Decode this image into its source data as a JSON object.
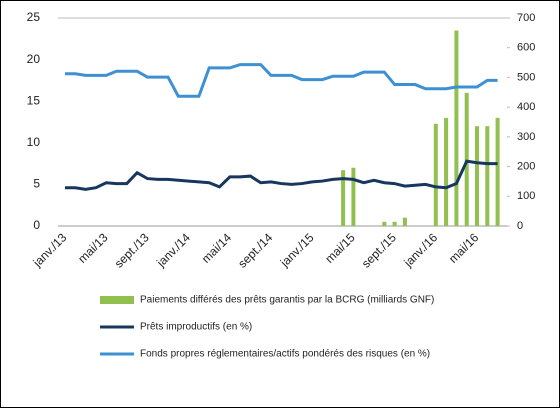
{
  "chart_data": {
    "type": "bar_line",
    "categories": [
      "janv./13",
      null,
      null,
      null,
      "mai/13",
      null,
      null,
      null,
      "sept./13",
      null,
      null,
      null,
      "janv./14",
      null,
      null,
      null,
      "mai/14",
      null,
      null,
      null,
      "sept./14",
      null,
      null,
      null,
      "janv./15",
      null,
      null,
      null,
      "mai/15",
      null,
      null,
      null,
      "sept./15",
      null,
      null,
      null,
      "janv./16",
      null,
      null,
      null,
      "mai/16",
      null,
      null
    ],
    "ylim": [
      0,
      25
    ],
    "yticks": [
      0,
      5,
      10,
      15,
      20,
      25
    ],
    "y2lim": [
      0,
      700
    ],
    "y2ticks": [
      0,
      100,
      200,
      300,
      400,
      500,
      600,
      700
    ],
    "series": [
      {
        "name": "Paiements différés des prêts garantis par la BCRG (milliards GNF)",
        "type": "bar",
        "axis": "y2",
        "color": "#92c050",
        "values": [
          null,
          null,
          null,
          null,
          null,
          null,
          null,
          null,
          null,
          null,
          null,
          null,
          null,
          null,
          null,
          null,
          null,
          null,
          null,
          null,
          null,
          null,
          null,
          null,
          null,
          null,
          null,
          188,
          196,
          null,
          null,
          14,
          14,
          28,
          null,
          null,
          344,
          364,
          658,
          448,
          336,
          336,
          364
        ]
      },
      {
        "name": "Prêts improductifs (en %)",
        "type": "line",
        "color": "#17375e",
        "values": [
          4.6,
          4.6,
          4.4,
          4.6,
          5.2,
          5.1,
          5.1,
          6.4,
          5.7,
          5.6,
          5.6,
          5.5,
          5.4,
          5.3,
          5.2,
          4.7,
          5.9,
          5.9,
          6.0,
          5.2,
          5.3,
          5.1,
          5.0,
          5.1,
          5.3,
          5.4,
          5.6,
          5.7,
          5.6,
          5.2,
          5.5,
          5.2,
          5.1,
          4.8,
          4.9,
          5.0,
          4.7,
          4.6,
          5.1,
          7.8,
          7.6,
          7.5,
          7.5
        ]
      },
      {
        "name": "Fonds propres réglementaires/actifs pondérés des risques (en %)",
        "type": "line",
        "color": "#3d91d3",
        "values": [
          18.3,
          18.3,
          18.1,
          18.1,
          18.1,
          18.6,
          18.6,
          18.6,
          17.9,
          17.9,
          17.9,
          15.6,
          15.6,
          15.6,
          19.0,
          19.0,
          19.0,
          19.4,
          19.4,
          19.4,
          18.1,
          18.1,
          18.1,
          17.6,
          17.6,
          17.6,
          18.0,
          18.0,
          18.0,
          18.5,
          18.5,
          18.5,
          17.0,
          17.0,
          17.0,
          16.5,
          16.5,
          16.5,
          16.7,
          16.7,
          16.7,
          17.5,
          17.5
        ]
      }
    ]
  }
}
